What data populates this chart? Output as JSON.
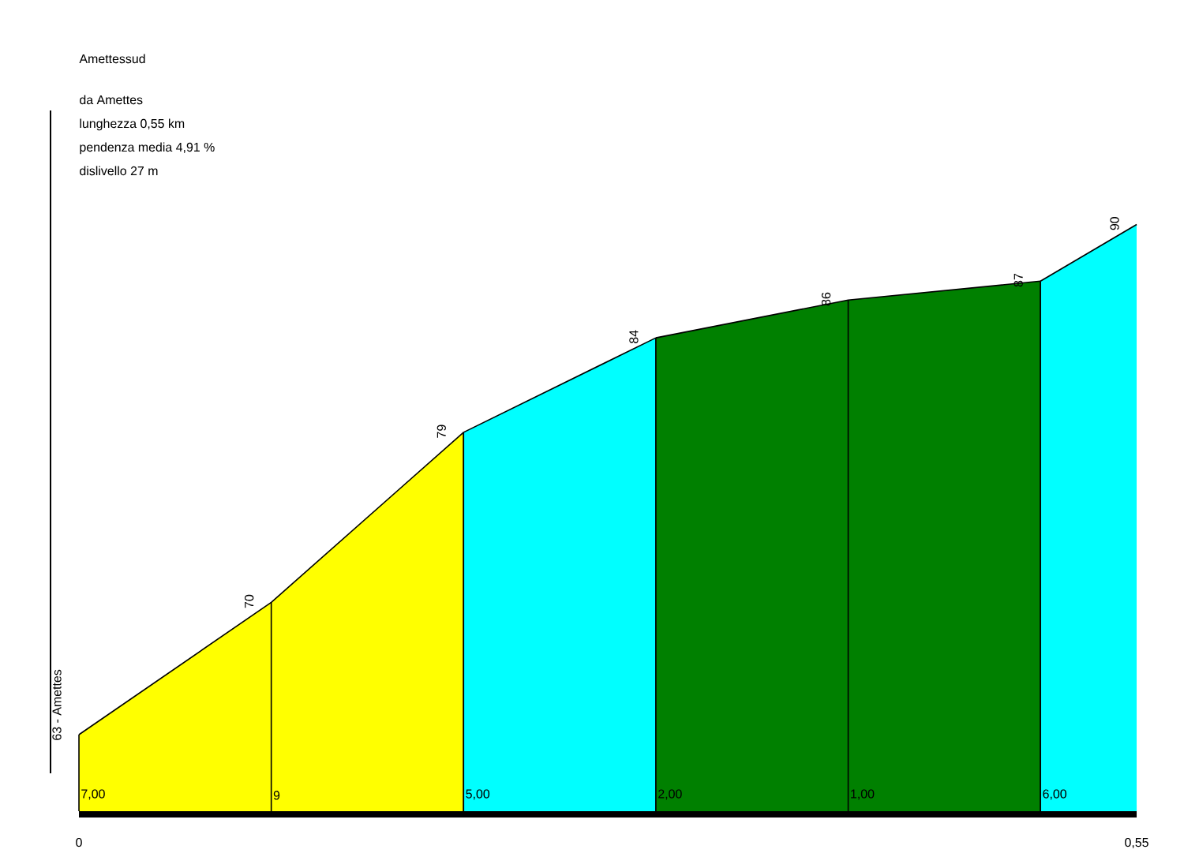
{
  "chart_data": {
    "type": "area",
    "title": "Amettessud",
    "annotations": [
      "da Amettes",
      "lunghezza 0,55 km",
      "pendenza media 4,91 %",
      "dislivello 27 m",
      "7,00",
      "9",
      "5,00",
      "2,00",
      "1,00",
      "6,00"
    ],
    "series": [
      {
        "x": [
          0,
          0.1,
          0.2
        ],
        "values": [
          63,
          70,
          79
        ],
        "color": "#ffff00",
        "value_labels": [
          "63 - Amettes",
          "70",
          "79"
        ]
      },
      {
        "x": [
          0.2,
          0.3
        ],
        "values": [
          79,
          84
        ],
        "color": "#00ffff",
        "value_labels": [
          null,
          "84"
        ]
      },
      {
        "x": [
          0.3,
          0.4,
          0.5
        ],
        "values": [
          84,
          86,
          87
        ],
        "color": "#008000",
        "value_labels": [
          null,
          "86",
          "87"
        ]
      },
      {
        "x": [
          0.5,
          0.55
        ],
        "values": [
          87,
          90
        ],
        "color": "#00ffff",
        "value_labels": [
          null,
          "90"
        ]
      }
    ],
    "xlim": [
      0,
      0.55
    ],
    "xticks": [
      {
        "value": 0,
        "label": "0"
      },
      {
        "value": 0.55,
        "label": "0,55"
      }
    ],
    "tick_labels": "x"
  }
}
